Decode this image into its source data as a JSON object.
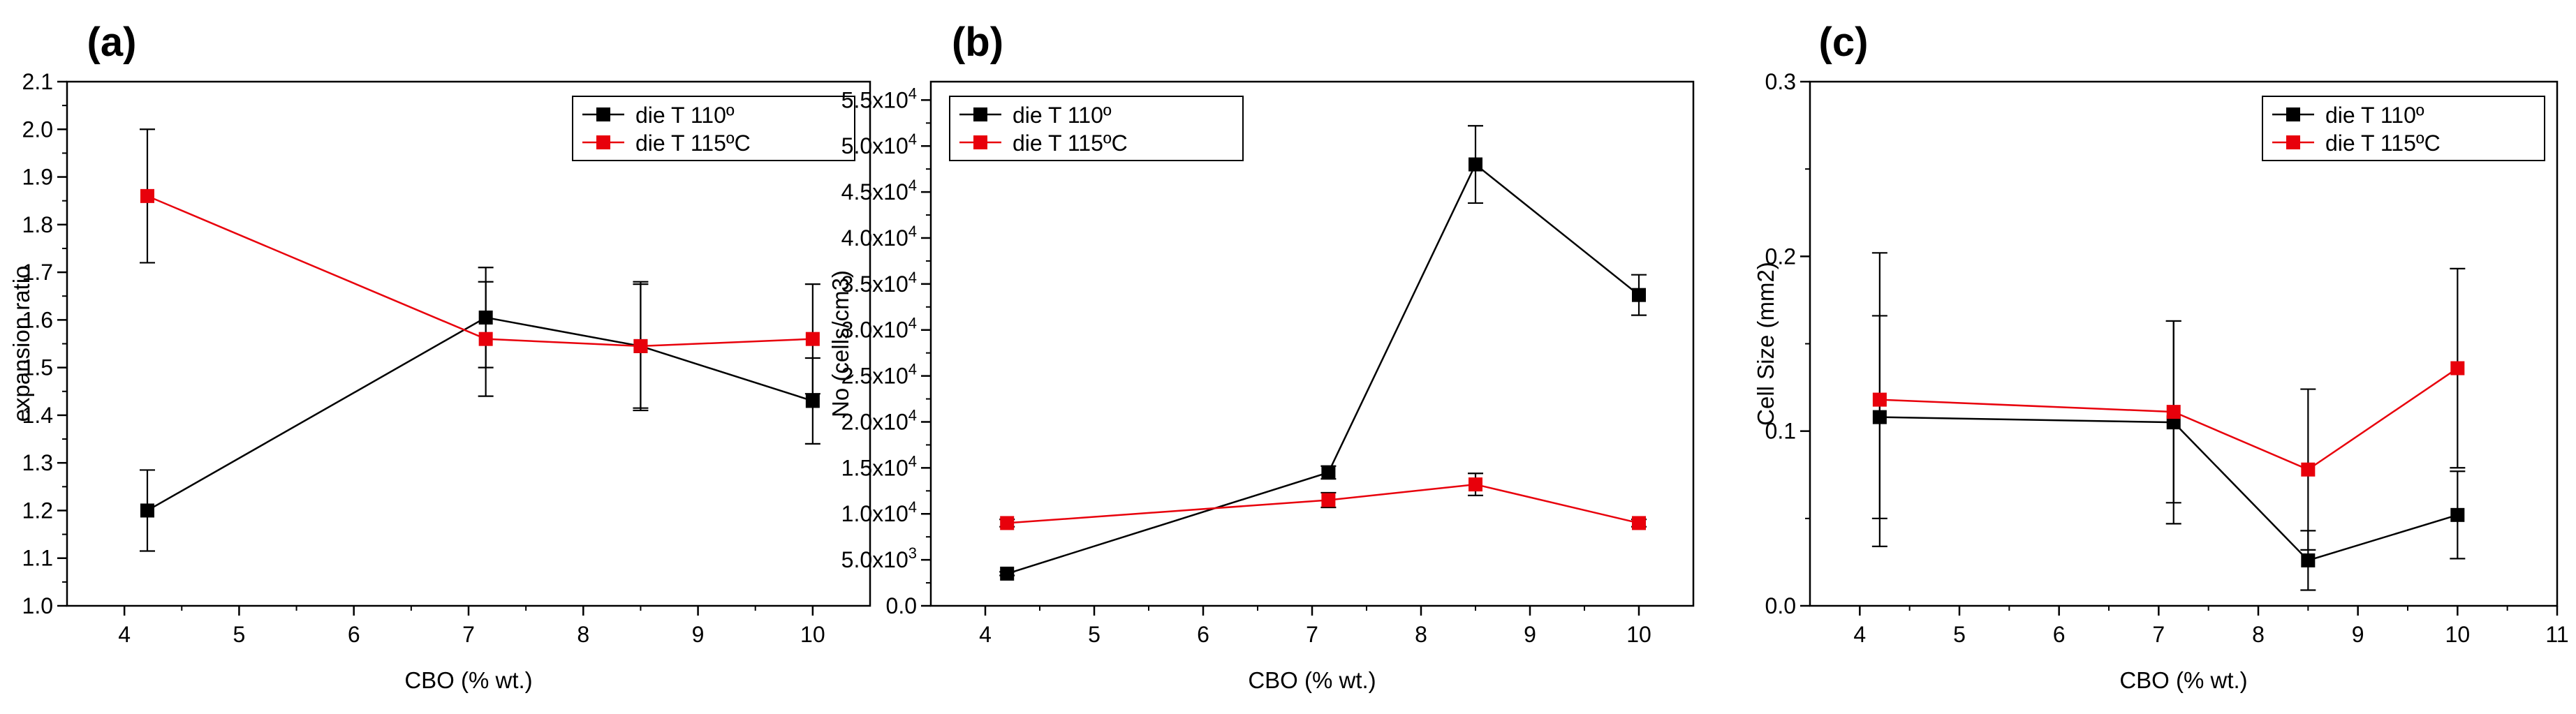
{
  "chart_data": [
    {
      "panel_label": "(a)",
      "type": "line",
      "xlabel": "CBO (% wt.)",
      "ylabel": "expansion ratio",
      "xlim": [
        3.5,
        10.5
      ],
      "ylim": [
        1.0,
        2.1
      ],
      "xticks": [
        4,
        5,
        6,
        7,
        8,
        9,
        10
      ],
      "yticks": [
        1.0,
        1.1,
        1.2,
        1.3,
        1.4,
        1.5,
        1.6,
        1.7,
        1.8,
        1.9,
        2.0,
        2.1
      ],
      "ytick_labels": [
        "1.0",
        "1.1",
        "1.2",
        "1.3",
        "1.4",
        "1.5",
        "1.6",
        "1.7",
        "1.8",
        "1.9",
        "2.0",
        "2.1"
      ],
      "legend_position": "top-right",
      "series": [
        {
          "name": "die T 110º",
          "color": "#000000",
          "x": [
            4.2,
            7.15,
            8.5,
            10.0
          ],
          "y": [
            1.2,
            1.605,
            1.545,
            1.43
          ],
          "error": [
            0.085,
            0.105,
            0.135,
            0.09
          ]
        },
        {
          "name": "die T 115ºC",
          "color": "#e8000b",
          "x": [
            4.2,
            7.15,
            8.5,
            10.0
          ],
          "y": [
            1.86,
            1.56,
            1.545,
            1.56
          ],
          "error": [
            0.14,
            0.12,
            0.13,
            0.115
          ]
        }
      ]
    },
    {
      "panel_label": "(b)",
      "type": "line",
      "xlabel": "CBO (% wt.)",
      "ylabel": "No (cells/cm3)",
      "xlim": [
        3.5,
        10.5
      ],
      "ylim": [
        0,
        57000
      ],
      "xticks": [
        4,
        5,
        6,
        7,
        8,
        9,
        10
      ],
      "yticks": [
        0,
        5000,
        10000,
        15000,
        20000,
        25000,
        30000,
        35000,
        40000,
        45000,
        50000,
        55000
      ],
      "ytick_labels": [
        {
          "m": "0.0",
          "e": ""
        },
        {
          "m": "5.0x10",
          "e": "3"
        },
        {
          "m": "1.0x10",
          "e": "4"
        },
        {
          "m": "1.5x10",
          "e": "4"
        },
        {
          "m": "2.0x10",
          "e": "4"
        },
        {
          "m": "2.5x10",
          "e": "4"
        },
        {
          "m": "3.0x10",
          "e": "4"
        },
        {
          "m": "3.5x10",
          "e": "4"
        },
        {
          "m": "4.0x10",
          "e": "4"
        },
        {
          "m": "4.5x10",
          "e": "4"
        },
        {
          "m": "5.0x10",
          "e": "4"
        },
        {
          "m": "5.5x10",
          "e": "4"
        }
      ],
      "legend_position": "top-left",
      "series": [
        {
          "name": "die T 110º",
          "color": "#000000",
          "x": [
            4.2,
            7.15,
            8.5,
            10.0
          ],
          "y": [
            3500,
            14500,
            48000,
            33800
          ],
          "error": [
            200,
            700,
            4200,
            2200
          ]
        },
        {
          "name": "die T 115ºC",
          "color": "#e8000b",
          "x": [
            4.2,
            7.15,
            8.5,
            10.0
          ],
          "y": [
            9000,
            11500,
            13200,
            9000
          ],
          "error": [
            400,
            800,
            1200,
            400
          ]
        }
      ]
    },
    {
      "panel_label": "(c)",
      "type": "line",
      "xlabel": "CBO (% wt.)",
      "ylabel": "Cell Size (mm2)",
      "xlim": [
        3.5,
        11
      ],
      "ylim": [
        0,
        0.3
      ],
      "xticks": [
        4,
        5,
        6,
        7,
        8,
        9,
        10,
        11
      ],
      "yticks": [
        0.0,
        0.1,
        0.2,
        0.3
      ],
      "ytick_labels": [
        "0.0",
        "0.1",
        "0.2",
        "0.3"
      ],
      "legend_position": "top-right",
      "series": [
        {
          "name": "die T 110º",
          "color": "#000000",
          "x": [
            4.2,
            7.15,
            8.5,
            10.0
          ],
          "y": [
            0.108,
            0.105,
            0.026,
            0.052
          ],
          "error": [
            0.058,
            0.058,
            0.017,
            0.025
          ]
        },
        {
          "name": "die T 115ºC",
          "color": "#e8000b",
          "x": [
            4.2,
            7.15,
            8.5,
            10.0
          ],
          "y": [
            0.118,
            0.111,
            0.078,
            0.136
          ],
          "error": [
            0.084,
            0.052,
            0.046,
            0.057
          ]
        }
      ]
    }
  ]
}
